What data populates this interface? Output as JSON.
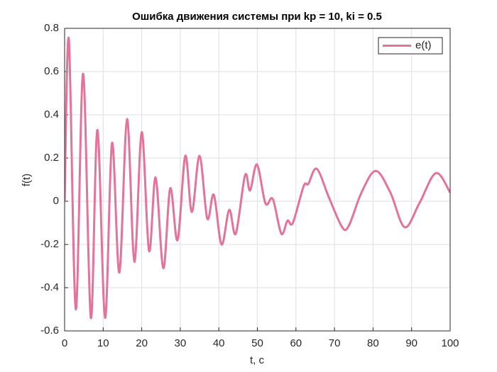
{
  "chart_data": {
    "type": "line",
    "title": "Ошибка движения системы при kp = 10, ki = 0.5",
    "x_label": "t, c",
    "y_label": "f(t)",
    "x": [
      0,
      1.1,
      2.9,
      4.8,
      6.8,
      8.5,
      10.5,
      12.3,
      14.2,
      16.2,
      18.1,
      20,
      21.9,
      23.6,
      25.6,
      27.4,
      29.3,
      31.3,
      33,
      35,
      37,
      38.7,
      40.7,
      42.7,
      44.4,
      46.8,
      48.1,
      49.9,
      52.1,
      54,
      56.2,
      57.8,
      59.2,
      62,
      63.2,
      65.4,
      68.5,
      72,
      73.8,
      77,
      80.7,
      84.5,
      88.2,
      92,
      96.3,
      100
    ],
    "series": [
      {
        "name": "e(t)",
        "color": "#e37399",
        "values": [
          0,
          0.75,
          -0.5,
          0.59,
          -0.54,
          0.33,
          -0.54,
          0.27,
          -0.33,
          0.38,
          -0.28,
          0.32,
          -0.23,
          0.11,
          -0.31,
          0.06,
          -0.18,
          0.21,
          -0.05,
          0.21,
          -0.08,
          0.03,
          -0.2,
          -0.04,
          -0.15,
          0.12,
          0.05,
          0.17,
          -0.01,
          0.01,
          -0.15,
          -0.09,
          -0.1,
          0.07,
          0.08,
          0.15,
          0.02,
          -0.12,
          -0.11,
          0.04,
          0.14,
          0.04,
          -0.12,
          -0.01,
          0.13,
          0.04
        ]
      }
    ],
    "xlim": [
      0,
      100
    ],
    "xticks": [
      0,
      10,
      20,
      30,
      40,
      50,
      60,
      70,
      80,
      90,
      100
    ],
    "ylim": [
      -0.6,
      0.8
    ],
    "yticks": [
      -0.6,
      -0.4,
      -0.2,
      0,
      0.2,
      0.4,
      0.6,
      0.8
    ],
    "grid": true,
    "legend": "northeast"
  }
}
